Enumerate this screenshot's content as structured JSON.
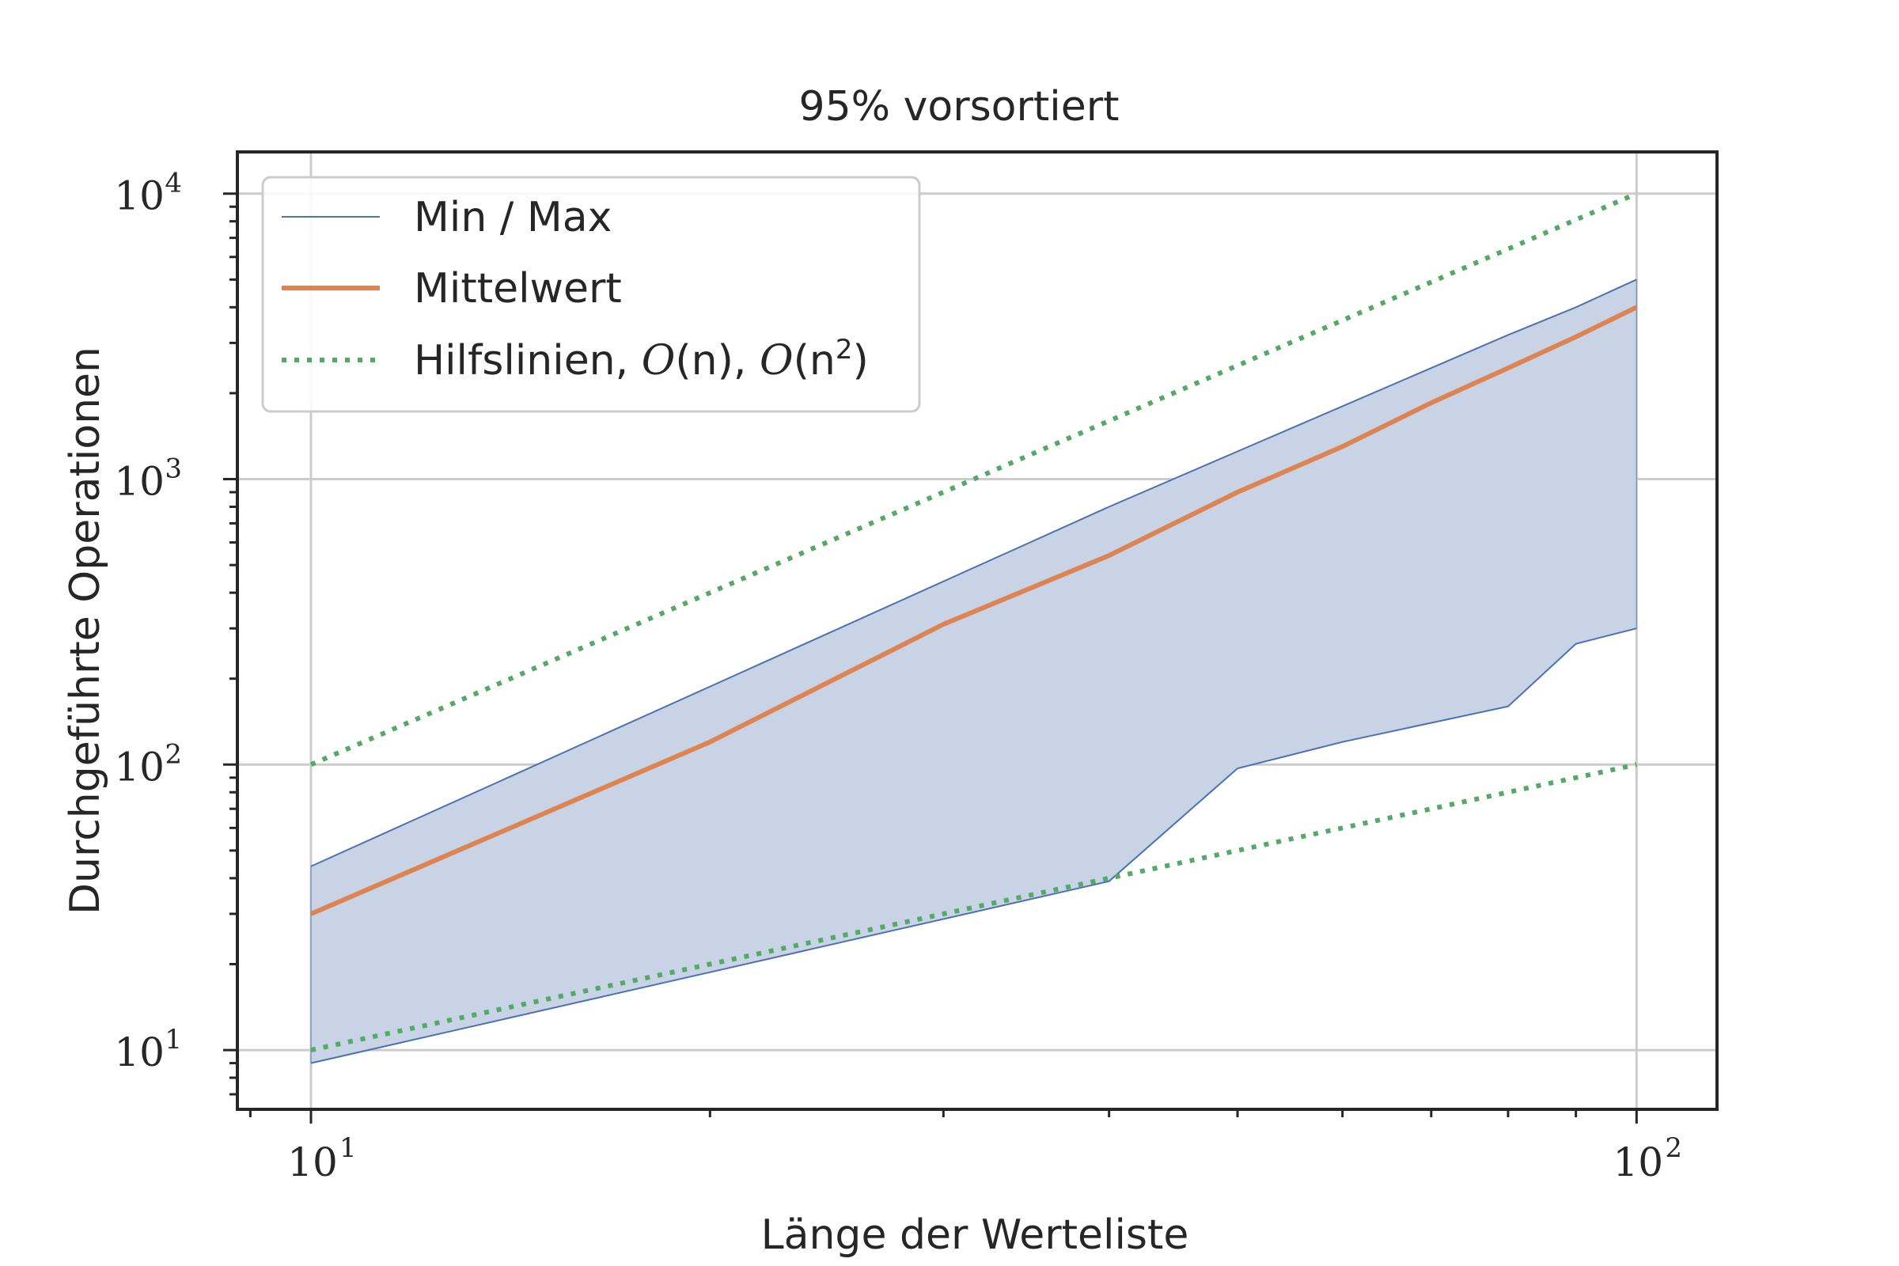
{
  "chart_data": {
    "type": "line",
    "title": "95% vorsortiert",
    "xlabel": "Länge der Werteliste",
    "ylabel": "Durchgeführte Operationen",
    "xscale": "log",
    "yscale": "log",
    "xlim": [
      8.8,
      115
    ],
    "ylim": [
      6.2,
      14000
    ],
    "x_ticks": [
      {
        "value": 10,
        "base": "10",
        "exp": "1"
      },
      {
        "value": 100,
        "base": "10",
        "exp": "2"
      }
    ],
    "y_ticks": [
      {
        "value": 10,
        "base": "10",
        "exp": "1"
      },
      {
        "value": 100,
        "base": "10",
        "exp": "2"
      },
      {
        "value": 1000,
        "base": "10",
        "exp": "3"
      },
      {
        "value": 10000,
        "base": "10",
        "exp": "4"
      }
    ],
    "grid": true,
    "legend_position": "top-left",
    "legend": {
      "minmax": "Min / Max",
      "mean": "Mittelwert",
      "guides_text": "Hilfslinien, ",
      "guides_o": "O",
      "guides_n1": "(n), ",
      "guides_n2_open": "(n",
      "guides_sup": "2",
      "guides_close": ")"
    },
    "series": [
      {
        "name": "Min / Max",
        "kind": "band",
        "x": [
          10,
          40,
          50,
          60,
          80,
          90,
          100
        ],
        "min": [
          9,
          39,
          97,
          120,
          160,
          265,
          300
        ],
        "max": [
          44,
          800,
          1250,
          1800,
          3200,
          4000,
          5000
        ]
      },
      {
        "name": "Mittelwert",
        "kind": "line",
        "x": [
          10,
          20,
          30,
          40,
          50,
          60,
          70,
          80,
          90,
          100
        ],
        "y": [
          30,
          120,
          310,
          540,
          900,
          1300,
          1850,
          2450,
          3150,
          4000
        ]
      },
      {
        "name": "Hilfslinien, O(n), O(n^2)",
        "kind": "guides",
        "x": [
          10,
          100
        ],
        "on": [
          10,
          100
        ],
        "on2": [
          100,
          10000
        ]
      }
    ],
    "colors": {
      "band_fill": "#c8d3e6",
      "band_line": "#4c72b0",
      "mean": "#dd8452",
      "guides": "#55a868",
      "grid": "#cccccc",
      "axes": "#262626"
    }
  }
}
